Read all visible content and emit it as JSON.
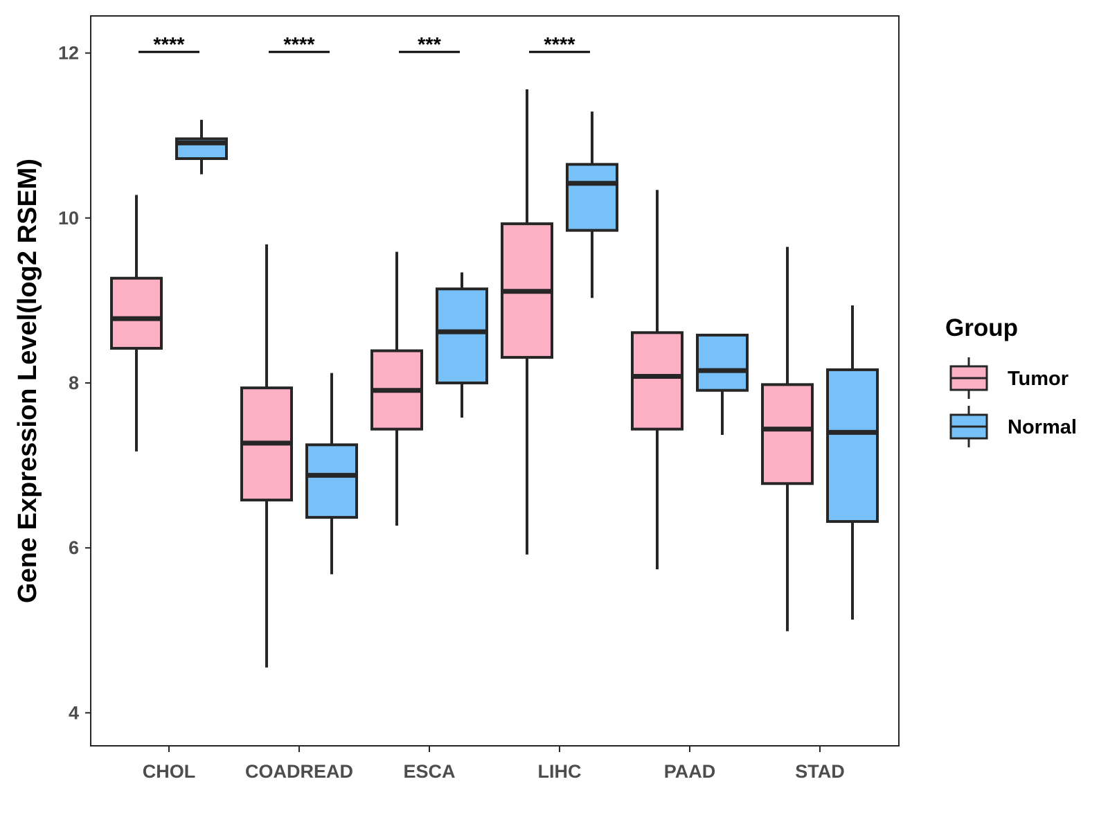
{
  "chart_data": {
    "type": "boxplot",
    "title": "",
    "xlabel": "",
    "ylabel": "Gene Expression Level(log2 RSEM)",
    "ylim": [
      3.6,
      12.45
    ],
    "yticks": [
      4,
      6,
      8,
      10,
      12
    ],
    "grid": false,
    "legend": {
      "title": "Group",
      "position": "right",
      "entries": [
        {
          "name": "Tumor",
          "color": "#FBB1C3"
        },
        {
          "name": "Normal",
          "color": "#78C1F8"
        }
      ]
    },
    "colors": {
      "outline": "#262626",
      "Tumor": "#FBB1C3",
      "Normal": "#78C1F8"
    },
    "categories": [
      "CHOL",
      "COADREAD",
      "ESCA",
      "LIHC",
      "PAAD",
      "STAD"
    ],
    "series": [
      {
        "name": "Tumor",
        "boxes": [
          {
            "min": 7.17,
            "q1": 8.42,
            "median": 8.78,
            "q3": 9.27,
            "max": 10.28
          },
          {
            "min": 4.55,
            "q1": 6.58,
            "median": 7.27,
            "q3": 7.94,
            "max": 9.68
          },
          {
            "min": 6.27,
            "q1": 7.44,
            "median": 7.91,
            "q3": 8.39,
            "max": 9.59
          },
          {
            "min": 5.92,
            "q1": 8.31,
            "median": 9.11,
            "q3": 9.93,
            "max": 11.56
          },
          {
            "min": 5.74,
            "q1": 7.44,
            "median": 8.08,
            "q3": 8.61,
            "max": 10.34
          },
          {
            "min": 4.99,
            "q1": 6.78,
            "median": 7.44,
            "q3": 7.98,
            "max": 9.65
          }
        ]
      },
      {
        "name": "Normal",
        "boxes": [
          {
            "min": 10.53,
            "q1": 10.72,
            "median": 10.91,
            "q3": 10.96,
            "max": 11.19
          },
          {
            "min": 5.68,
            "q1": 6.37,
            "median": 6.88,
            "q3": 7.25,
            "max": 8.12
          },
          {
            "min": 7.58,
            "q1": 8.0,
            "median": 8.62,
            "q3": 9.14,
            "max": 9.34
          },
          {
            "min": 9.03,
            "q1": 9.85,
            "median": 10.42,
            "q3": 10.65,
            "max": 11.29
          },
          {
            "min": 7.37,
            "q1": 7.91,
            "median": 8.15,
            "q3": 8.58,
            "max": 8.58
          },
          {
            "min": 5.13,
            "q1": 6.32,
            "median": 7.4,
            "q3": 8.16,
            "max": 8.94
          }
        ]
      }
    ],
    "significance": [
      {
        "category": "CHOL",
        "label": "****"
      },
      {
        "category": "COADREAD",
        "label": "****"
      },
      {
        "category": "ESCA",
        "label": "***"
      },
      {
        "category": "LIHC",
        "label": "****"
      },
      {
        "category": "PAAD",
        "label": ""
      },
      {
        "category": "STAD",
        "label": ""
      }
    ]
  }
}
